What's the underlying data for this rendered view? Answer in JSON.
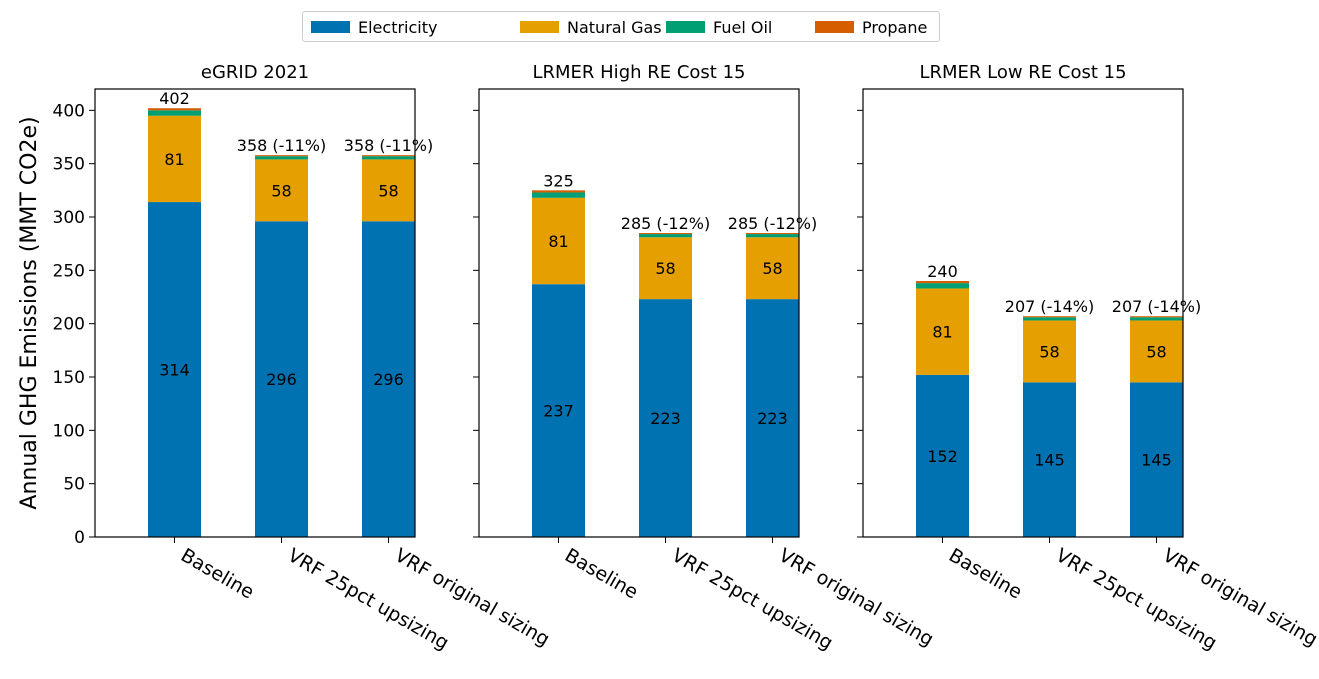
{
  "chart_data": {
    "type": "bar",
    "stacked": true,
    "ylabel": "Annual GHG Emissions (MMT CO2e)",
    "ylim": [
      0,
      420
    ],
    "yticks": [
      0,
      50,
      100,
      150,
      200,
      250,
      300,
      350,
      400
    ],
    "grid": false,
    "legend_position": "top-center",
    "series": [
      {
        "name": "Electricity",
        "color": "#0072b2"
      },
      {
        "name": "Natural Gas",
        "color": "#e69f00"
      },
      {
        "name": "Fuel Oil",
        "color": "#009e73"
      },
      {
        "name": "Propane",
        "color": "#d55e00"
      }
    ],
    "panels": [
      {
        "title": "eGRID 2021",
        "categories": [
          "Baseline",
          "VRF 25pct upsizing",
          "VRF original sizing"
        ],
        "values": {
          "Electricity": [
            314,
            296,
            296
          ],
          "Natural Gas": [
            81,
            58,
            58
          ],
          "Fuel Oil": [
            5,
            3,
            3
          ],
          "Propane": [
            2,
            1,
            1
          ]
        },
        "segment_labels": {
          "Electricity": [
            "314",
            "296",
            "296"
          ],
          "Natural Gas": [
            "81",
            "58",
            "58"
          ]
        },
        "total_labels": [
          "402",
          "358 (-11%)",
          "358 (-11%)"
        ]
      },
      {
        "title": "LRMER High RE Cost 15",
        "categories": [
          "Baseline",
          "VRF 25pct upsizing",
          "VRF original sizing"
        ],
        "values": {
          "Electricity": [
            237,
            223,
            223
          ],
          "Natural Gas": [
            81,
            58,
            58
          ],
          "Fuel Oil": [
            5,
            3,
            3
          ],
          "Propane": [
            2,
            1,
            1
          ]
        },
        "segment_labels": {
          "Electricity": [
            "237",
            "223",
            "223"
          ],
          "Natural Gas": [
            "81",
            "58",
            "58"
          ]
        },
        "total_labels": [
          "325",
          "285 (-12%)",
          "285 (-12%)"
        ]
      },
      {
        "title": "LRMER Low RE Cost 15",
        "categories": [
          "Baseline",
          "VRF 25pct upsizing",
          "VRF original sizing"
        ],
        "values": {
          "Electricity": [
            152,
            145,
            145
          ],
          "Natural Gas": [
            81,
            58,
            58
          ],
          "Fuel Oil": [
            5,
            3,
            3
          ],
          "Propane": [
            2,
            1,
            1
          ]
        },
        "segment_labels": {
          "Electricity": [
            "152",
            "145",
            "145"
          ],
          "Natural Gas": [
            "81",
            "58",
            "58"
          ]
        },
        "total_labels": [
          "240",
          "207 (-14%)",
          "207 (-14%)"
        ]
      }
    ]
  }
}
